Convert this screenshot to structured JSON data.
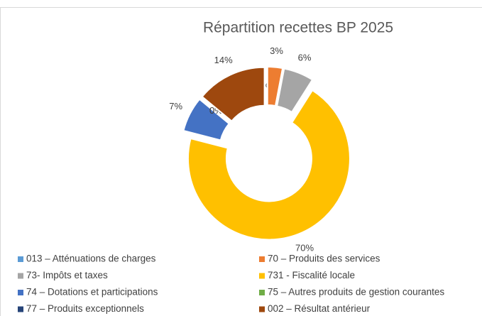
{
  "chart_data": {
    "type": "doughnut",
    "title": "Répartition recettes BP 2025",
    "categories": [
      "013 – Atténuations de charges",
      "70 – Produits des services",
      "73- Impôts et taxes",
      "731 - Fiscalité locale",
      "74 – Dotations et participations",
      "75 – Autres produits de gestion courantes",
      "77 – Produits exceptionnels",
      "002 – Résultat antérieur"
    ],
    "values": [
      0,
      3,
      6,
      70,
      7,
      0,
      0,
      14
    ],
    "value_labels": [
      "0%",
      "3%",
      "6%",
      "70%",
      "7%",
      "0%",
      "0%",
      "14%"
    ],
    "colors": [
      "#5b9bd5",
      "#ed7d31",
      "#a5a5a5",
      "#ffc000",
      "#4472c4",
      "#70ad47",
      "#264478",
      "#9e480e"
    ],
    "legend": "bottom"
  }
}
